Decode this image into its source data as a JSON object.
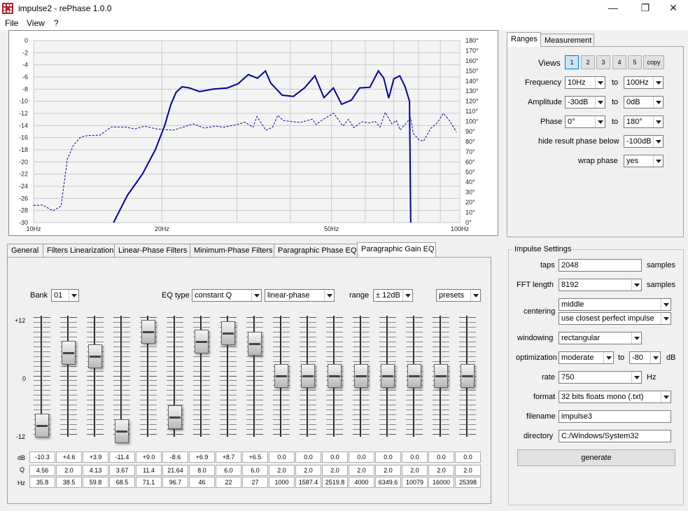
{
  "window": {
    "title": "impulse2  -  rePhase 1.0.0"
  },
  "menu": [
    "File",
    "View",
    "?"
  ],
  "graph": {
    "left_ticks": [
      "0",
      "-2",
      "-4",
      "-6",
      "-8",
      "-10",
      "-12",
      "-14",
      "-16",
      "-18",
      "-20",
      "-22",
      "-24",
      "-26",
      "-28",
      "-30"
    ],
    "right_ticks": [
      "180°",
      "170°",
      "160°",
      "150°",
      "140°",
      "130°",
      "120°",
      "110°",
      "100°",
      "90°",
      "80°",
      "70°",
      "60°",
      "50°",
      "40°",
      "30°",
      "20°",
      "10°",
      "0°"
    ],
    "x_ticks": [
      "10Hz",
      "20Hz",
      "50Hz",
      "100Hz"
    ],
    "colors": {
      "trace": "#0000a0",
      "grid": "#c8c8c8"
    }
  },
  "chart_data": {
    "type": "line",
    "xscale": "log",
    "xlim": [
      10,
      100
    ],
    "ylim_left": [
      -30,
      0
    ],
    "ylim_right": [
      0,
      180
    ],
    "grid": true,
    "series": [
      {
        "style": "solid",
        "axis": "left",
        "x": [
          15.4,
          16.6,
          18.0,
          19.3,
          20.3,
          21.0,
          21.6,
          22.3,
          23.2,
          24.5,
          26.4,
          28.5,
          30.2,
          31.9,
          33.5,
          35.0,
          36.0,
          38.3,
          40.7,
          43.2,
          45.7,
          48.0,
          50.5,
          52.8,
          55.7,
          58.2,
          61.5,
          64.4,
          66.3,
          68.1,
          70.0,
          72.3,
          74.4,
          76.2,
          76.7
        ],
        "y": [
          -30,
          -25.5,
          -22.0,
          -18.0,
          -14.0,
          -10.5,
          -8.5,
          -7.6,
          -7.8,
          -8.4,
          -8.0,
          -7.8,
          -7.1,
          -5.6,
          -6.2,
          -5.0,
          -7.0,
          -9.0,
          -9.2,
          -7.8,
          -5.8,
          -9.4,
          -7.8,
          -10.5,
          -9.8,
          -7.8,
          -7.7,
          -5.0,
          -6.2,
          -9.5,
          -6.3,
          -5.8,
          -7.6,
          -10.0,
          -30
        ]
      },
      {
        "style": "dashed",
        "axis": "right",
        "x": [
          10.0,
          10.5,
          11.1,
          11.6,
          12.0,
          12.4,
          12.9,
          13.4,
          14.3,
          15.2,
          16.4,
          17.3,
          18.2,
          19.4,
          21.2,
          22.5,
          23.7,
          25.1,
          26.8,
          27.9,
          30.1,
          31.3,
          32.7,
          33.4,
          35.1,
          36.4,
          37.4,
          38.5,
          41.3,
          42.2,
          45.1,
          46.0,
          47.4,
          50.6,
          53.2,
          54.8,
          56.4,
          58.9,
          61.5,
          63.2,
          65.0,
          66.8,
          69.3,
          71.0,
          72.4,
          75.2,
          76.7,
          77.7,
          80.2,
          82.2,
          85.5,
          88.3,
          91.5,
          94.3,
          98.2
        ],
        "y": [
          17.0,
          17.4,
          11.7,
          16.3,
          62.7,
          76.4,
          84.5,
          86.2,
          86.4,
          94.5,
          94.5,
          92.6,
          95.3,
          92.7,
          91.3,
          94.5,
          97.7,
          93.5,
          95.4,
          94.3,
          97.2,
          99.3,
          94.3,
          104.8,
          91.3,
          94.5,
          106.2,
          101.0,
          99.4,
          99.0,
          102.3,
          96.9,
          101.1,
          108.2,
          95.5,
          102.2,
          93.9,
          99.7,
          98.5,
          100.3,
          94.5,
          109.0,
          97.7,
          101.0,
          91.5,
          99.5,
          103.6,
          88.4,
          81.8,
          80.6,
          93.3,
          98.2,
          108.0,
          101.5,
          89.7
        ]
      }
    ]
  },
  "eq_tabs": [
    "General",
    "Filters Linearization",
    "Linear-Phase Filters",
    "Minimum-Phase Filters",
    "Paragraphic Phase EQ",
    "Paragraphic Gain EQ"
  ],
  "eq": {
    "bank_label": "Bank",
    "bank_value": "01",
    "eqtype_label": "EQ type",
    "eqtype_value": "constant Q",
    "phase_value": "linear-phase",
    "range_label": "range",
    "range_value": "± 12dB",
    "presets": "presets",
    "scale": [
      "+12",
      "0",
      "-12"
    ],
    "row_labels": [
      "dB",
      "Q",
      "Hz"
    ],
    "bands": [
      {
        "db": "-10.3",
        "q": "4.56",
        "hz": "35.8",
        "level": -10.3
      },
      {
        "db": "+4.6",
        "q": "2.0",
        "hz": "38.5",
        "level": 4.6
      },
      {
        "db": "+3.9",
        "q": "4.13",
        "hz": "59.8",
        "level": 3.9
      },
      {
        "db": "-11.4",
        "q": "3.67",
        "hz": "68.5",
        "level": -11.4
      },
      {
        "db": "+9.0",
        "q": "11.4",
        "hz": "71.1",
        "level": 9.0
      },
      {
        "db": "-8.6",
        "q": "21.64",
        "hz": "96.7",
        "level": -8.6
      },
      {
        "db": "+6.9",
        "q": "8.0",
        "hz": "46",
        "level": 6.9
      },
      {
        "db": "+8.7",
        "q": "6.0",
        "hz": "22",
        "level": 8.7
      },
      {
        "db": "+6.5",
        "q": "6.0",
        "hz": "27",
        "level": 6.5
      },
      {
        "db": "0.0",
        "q": "2.0",
        "hz": "1000",
        "level": 0
      },
      {
        "db": "0.0",
        "q": "2.0",
        "hz": "1587.4",
        "level": 0
      },
      {
        "db": "0.0",
        "q": "2.0",
        "hz": "2519.8",
        "level": 0
      },
      {
        "db": "0.0",
        "q": "2.0",
        "hz": "4000",
        "level": 0
      },
      {
        "db": "0.0",
        "q": "2.0",
        "hz": "6349.6",
        "level": 0
      },
      {
        "db": "0.0",
        "q": "2.0",
        "hz": "10079",
        "level": 0
      },
      {
        "db": "0.0",
        "q": "2.0",
        "hz": "16000",
        "level": 0
      },
      {
        "db": "0.0",
        "q": "2.0",
        "hz": "25398",
        "level": 0
      }
    ]
  },
  "right_tabs": [
    "Ranges",
    "Measurement"
  ],
  "ranges": {
    "views_label": "Views",
    "views": [
      "1",
      "2",
      "3",
      "4",
      "5",
      "copy"
    ],
    "to": "to",
    "frequency": {
      "label": "Frequency",
      "from": "10Hz",
      "to": "100Hz"
    },
    "amplitude": {
      "label": "Amplitude",
      "from": "-30dB",
      "to": "0dB"
    },
    "phase": {
      "label": "Phase",
      "from": "0°",
      "to": "180°"
    },
    "hide": {
      "label": "hide result phase below",
      "value": "-100dB"
    },
    "wrap": {
      "label": "wrap phase",
      "value": "yes"
    }
  },
  "impulse": {
    "title": "Impulse Settings",
    "taps": {
      "label": "taps",
      "value": "2048",
      "unit": "samples"
    },
    "fft": {
      "label": "FFT length",
      "value": "8192",
      "unit": "samples"
    },
    "centering": {
      "label": "centering",
      "value1": "middle",
      "value2": "use closest perfect impulse"
    },
    "windowing": {
      "label": "windowing",
      "value": "rectangular"
    },
    "optimization": {
      "label": "optimization",
      "value": "moderate",
      "to": "to",
      "value2": "-80",
      "unit": "dB"
    },
    "rate": {
      "label": "rate",
      "value": "750",
      "unit": "Hz"
    },
    "format": {
      "label": "format",
      "value": "32 bits floats mono (.txt)"
    },
    "filename": {
      "label": "filename",
      "value": "impulse3"
    },
    "directory": {
      "label": "directory",
      "value": "C:/Windows/System32"
    },
    "generate": "generate"
  }
}
